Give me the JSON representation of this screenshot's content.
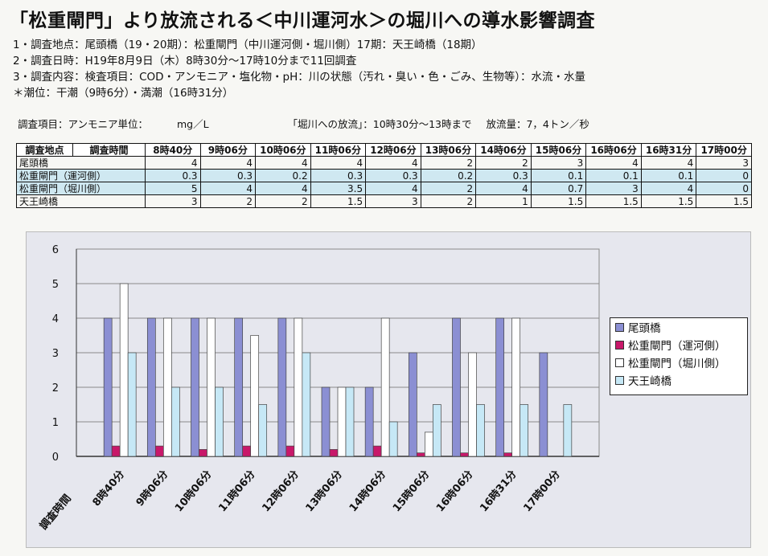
{
  "title": "「松重閘門」より放流される＜中川運河水＞の堀川への導水影響調査",
  "info_lines": [
    "1・調査地点：尾頭橋（19・20期）：松重閘門（中川運河側・堀川側）17期：天王崎橋（18期）",
    "2・調査日時：H19年8月9日（木）8時30分～17時10分まで11回調査",
    "3・調査内容：検査項目：COD・アンモニア・塩化物・pH：川の状態（汚れ・臭い・色・ごみ、生物等）：水流・水量",
    "＊潮位：干潮（9時6分）・満潮（16時31分）"
  ],
  "unit_label": "調査項目：アンモニア単位：",
  "unit_value": "mg／L",
  "flow_note": "「堀川への放流」：10時30分～13時まで",
  "flow_amount": "放流量：7，4トン／秒",
  "table": {
    "h_site": "調査地点",
    "h_time": "調査時間",
    "rows": [
      {
        "site": "尾頭橋",
        "values": [
          "4",
          "4",
          "4",
          "4",
          "4",
          "2",
          "2",
          "3",
          "4",
          "4",
          "3"
        ]
      },
      {
        "site": "松重閘門（運河側）",
        "values": [
          "0.3",
          "0.3",
          "0.2",
          "0.3",
          "0.3",
          "0.2",
          "0.3",
          "0.1",
          "0.1",
          "0.1",
          "0"
        ]
      },
      {
        "site": "松重閘門（堀川側）",
        "values": [
          "5",
          "4",
          "4",
          "3.5",
          "4",
          "2",
          "4",
          "0.7",
          "3",
          "4",
          "0"
        ]
      },
      {
        "site": "天王崎橋",
        "values": [
          "3",
          "2",
          "2",
          "1.5",
          "3",
          "2",
          "1",
          "1.5",
          "1.5",
          "1.5",
          "1.5"
        ]
      }
    ]
  },
  "chart_data": {
    "type": "bar",
    "categories": [
      "8時40分",
      "9時06分",
      "10時06分",
      "11時06分",
      "12時06分",
      "13時06分",
      "14時06分",
      "15時06分",
      "16時06分",
      "16時31分",
      "17時00分"
    ],
    "xlabel": "調査時間",
    "ylim": [
      0,
      6
    ],
    "yticks": [
      "0",
      "1",
      "2",
      "3",
      "4",
      "5",
      "6"
    ],
    "series": [
      {
        "name": "尾頭橋",
        "color": "#8b8fd3",
        "values": [
          4,
          4,
          4,
          4,
          4,
          2,
          2,
          3,
          4,
          4,
          3
        ]
      },
      {
        "name": "松重閘門（運河側）",
        "color": "#c8186a",
        "values": [
          0.3,
          0.3,
          0.2,
          0.3,
          0.3,
          0.2,
          0.3,
          0.1,
          0.1,
          0.1,
          0
        ]
      },
      {
        "name": "松重閘門（堀川側）",
        "color": "#ffffff",
        "values": [
          5,
          4,
          4,
          3.5,
          4,
          2,
          4,
          0.7,
          3,
          4,
          0
        ]
      },
      {
        "name": "天王崎橋",
        "color": "#c6e8f6",
        "values": [
          3,
          2,
          2,
          1.5,
          3,
          2,
          1,
          1.5,
          1.5,
          1.5,
          1.5
        ]
      }
    ],
    "legend_position": "right",
    "grid": "horizontal"
  }
}
